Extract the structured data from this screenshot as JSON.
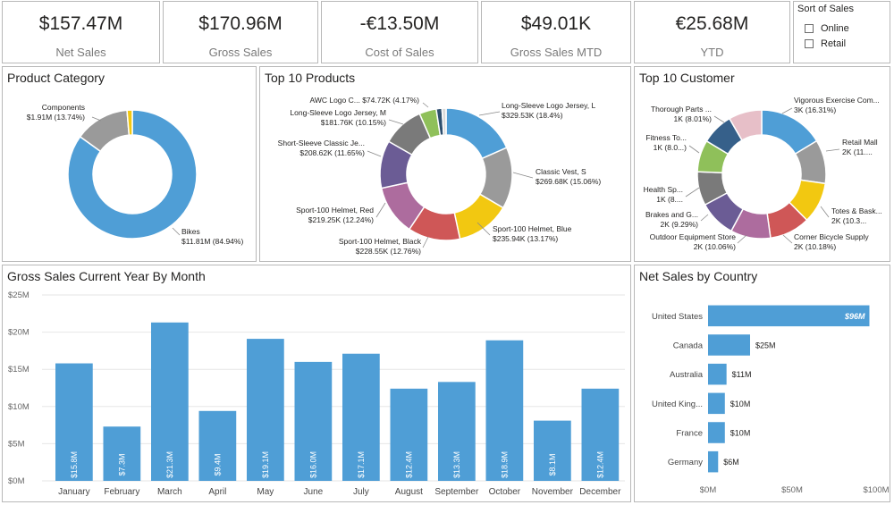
{
  "kpis": [
    {
      "value": "$157.47M",
      "label": "Net Sales"
    },
    {
      "value": "$170.96M",
      "label": "Gross Sales"
    },
    {
      "value": "-€13.50M",
      "label": "Cost of Sales"
    },
    {
      "value": "$49.01K",
      "label": "Gross Sales MTD"
    },
    {
      "value": "€25.68M",
      "label": "YTD"
    }
  ],
  "slicer": {
    "title": "Sort of Sales",
    "options": [
      "Online",
      "Retail"
    ]
  },
  "panels": {
    "product_category": "Product Category",
    "top_products": "Top 10 Products",
    "top_customers": "Top 10 Customer",
    "gross_by_month": "Gross Sales Current Year By Month",
    "net_by_country": "Net Sales by Country"
  },
  "colors": {
    "blue": "#4f9ed6",
    "grey": "#9a9a9a",
    "yellow": "#f2c811",
    "dark_grey": "#5a5a5a",
    "green": "#8fc05a",
    "red": "#cf5757",
    "purple": "#6b5c95",
    "pink": "#ad6c9e",
    "navy": "#36608a",
    "light_pink": "#e7bfc8",
    "dark_blue": "#2e4f6e"
  },
  "chart_data": [
    {
      "type": "pie",
      "title": "Product Category",
      "slices": [
        {
          "label": "Bikes",
          "value": 84.94,
          "display": [
            "Bikes",
            "$11.81M (84.94%)"
          ],
          "color": "#4f9ed6"
        },
        {
          "label": "Components",
          "value": 13.74,
          "display": [
            "Components",
            "$1.91M (13.74%)"
          ],
          "color": "#9a9a9a"
        },
        {
          "label": "",
          "value": 1.32,
          "display": [],
          "color": "#f2c811"
        }
      ]
    },
    {
      "type": "pie",
      "title": "Top 10 Products",
      "slices": [
        {
          "label": "Long-Sleeve Logo Jersey, L",
          "value": 18.4,
          "display": [
            "Long-Sleeve Logo Jersey, L",
            "$329.53K (18.4%)"
          ],
          "color": "#4f9ed6"
        },
        {
          "label": "Classic Vest, S",
          "value": 15.06,
          "display": [
            "Classic Vest, S",
            "$269.68K (15.06%)"
          ],
          "color": "#9a9a9a"
        },
        {
          "label": "Sport-100 Helmet, Blue",
          "value": 13.17,
          "display": [
            "Sport-100 Helmet, Blue",
            "$235.94K (13.17%)"
          ],
          "color": "#f2c811"
        },
        {
          "label": "Sport-100 Helmet, Black",
          "value": 12.76,
          "display": [
            "Sport-100 Helmet, Black",
            "$228.55K (12.76%)"
          ],
          "color": "#cf5757"
        },
        {
          "label": "Sport-100 Helmet, Red",
          "value": 12.24,
          "display": [
            "Sport-100 Helmet, Red",
            "$219.25K (12.24%)"
          ],
          "color": "#ad6c9e"
        },
        {
          "label": "Short-Sleeve Classic Je...",
          "value": 11.65,
          "display": [
            "Short-Sleeve Classic Je...",
            "$208.62K (11.65%)"
          ],
          "color": "#6b5c95"
        },
        {
          "label": "Long-Sleeve Logo Jersey, M",
          "value": 10.15,
          "display": [
            "Long-Sleeve Logo Jersey, M",
            "$181.76K (10.15%)"
          ],
          "color": "#7a7a7a"
        },
        {
          "label": "AWC Logo C...",
          "value": 4.17,
          "display": [
            "AWC Logo C... $74.72K (4.17%)"
          ],
          "color": "#8fc05a"
        },
        {
          "label": "",
          "value": 1.4,
          "display": [],
          "color": "#2e4f6e"
        },
        {
          "label": "",
          "value": 1.0,
          "display": [],
          "color": "#d9d9d9"
        }
      ]
    },
    {
      "type": "pie",
      "title": "Top 10 Customer",
      "slices": [
        {
          "label": "Vigorous Exercise Com...",
          "value": 16.31,
          "display": [
            "Vigorous Exercise Com...",
            "3K (16.31%)"
          ],
          "color": "#4f9ed6"
        },
        {
          "label": "Retail Mall",
          "value": 11.0,
          "display": [
            "Retail Mall",
            "2K (11...."
          ],
          "color": "#9a9a9a"
        },
        {
          "label": "Totes & Bask...",
          "value": 10.3,
          "display": [
            "Totes & Bask...",
            "2K (10.3..."
          ],
          "color": "#f2c811"
        },
        {
          "label": "Corner Bicycle Supply",
          "value": 10.18,
          "display": [
            "Corner Bicycle Supply",
            "2K (10.18%)"
          ],
          "color": "#cf5757"
        },
        {
          "label": "Outdoor Equipment Store",
          "value": 10.06,
          "display": [
            "Outdoor Equipment Store",
            "2K (10.06%)"
          ],
          "color": "#ad6c9e"
        },
        {
          "label": "Brakes and G...",
          "value": 9.29,
          "display": [
            "Brakes and G...",
            "2K (9.29%)"
          ],
          "color": "#6b5c95"
        },
        {
          "label": "Health Sp...",
          "value": 8.5,
          "display": [
            "Health Sp...",
            "1K (8...."
          ],
          "color": "#7a7a7a"
        },
        {
          "label": "Fitness To...",
          "value": 8.0,
          "display": [
            "Fitness To...",
            "1K (8.0...)"
          ],
          "color": "#8fc05a"
        },
        {
          "label": "Thorough Parts ...",
          "value": 8.01,
          "display": [
            "Thorough Parts ...",
            "1K (8.01%)"
          ],
          "color": "#36608a"
        },
        {
          "label": "",
          "value": 8.35,
          "display": [],
          "color": "#e7bfc8"
        }
      ]
    },
    {
      "type": "bar",
      "title": "Gross Sales Current Year By Month",
      "categories": [
        "January",
        "February",
        "March",
        "April",
        "May",
        "June",
        "July",
        "August",
        "September",
        "October",
        "November",
        "December"
      ],
      "values": [
        15.8,
        7.3,
        21.3,
        9.4,
        19.1,
        16.0,
        17.1,
        12.4,
        13.3,
        18.9,
        8.1,
        12.4
      ],
      "data_labels": [
        "$15.8M",
        "$7.3M",
        "$21.3M",
        "$9.4M",
        "$19.1M",
        "$16.0M",
        "$17.1M",
        "$12.4M",
        "$13.3M",
        "$18.9M",
        "$8.1M",
        "$12.4M"
      ],
      "yticks": [
        "$0M",
        "$5M",
        "$10M",
        "$15M",
        "$20M",
        "$25M"
      ],
      "ylim": [
        0,
        25
      ],
      "color": "#4f9ed6"
    },
    {
      "type": "bar",
      "orientation": "horizontal",
      "title": "Net Sales by Country",
      "categories": [
        "United States",
        "Canada",
        "Australia",
        "United King...",
        "France",
        "Germany"
      ],
      "values": [
        96,
        25,
        11,
        10,
        10,
        6
      ],
      "data_labels": [
        "$96M",
        "$25M",
        "$11M",
        "$10M",
        "$10M",
        "$6M"
      ],
      "xticks": [
        "$0M",
        "$50M",
        "$100M"
      ],
      "xlim": [
        0,
        100
      ],
      "color": "#4f9ed6"
    }
  ]
}
